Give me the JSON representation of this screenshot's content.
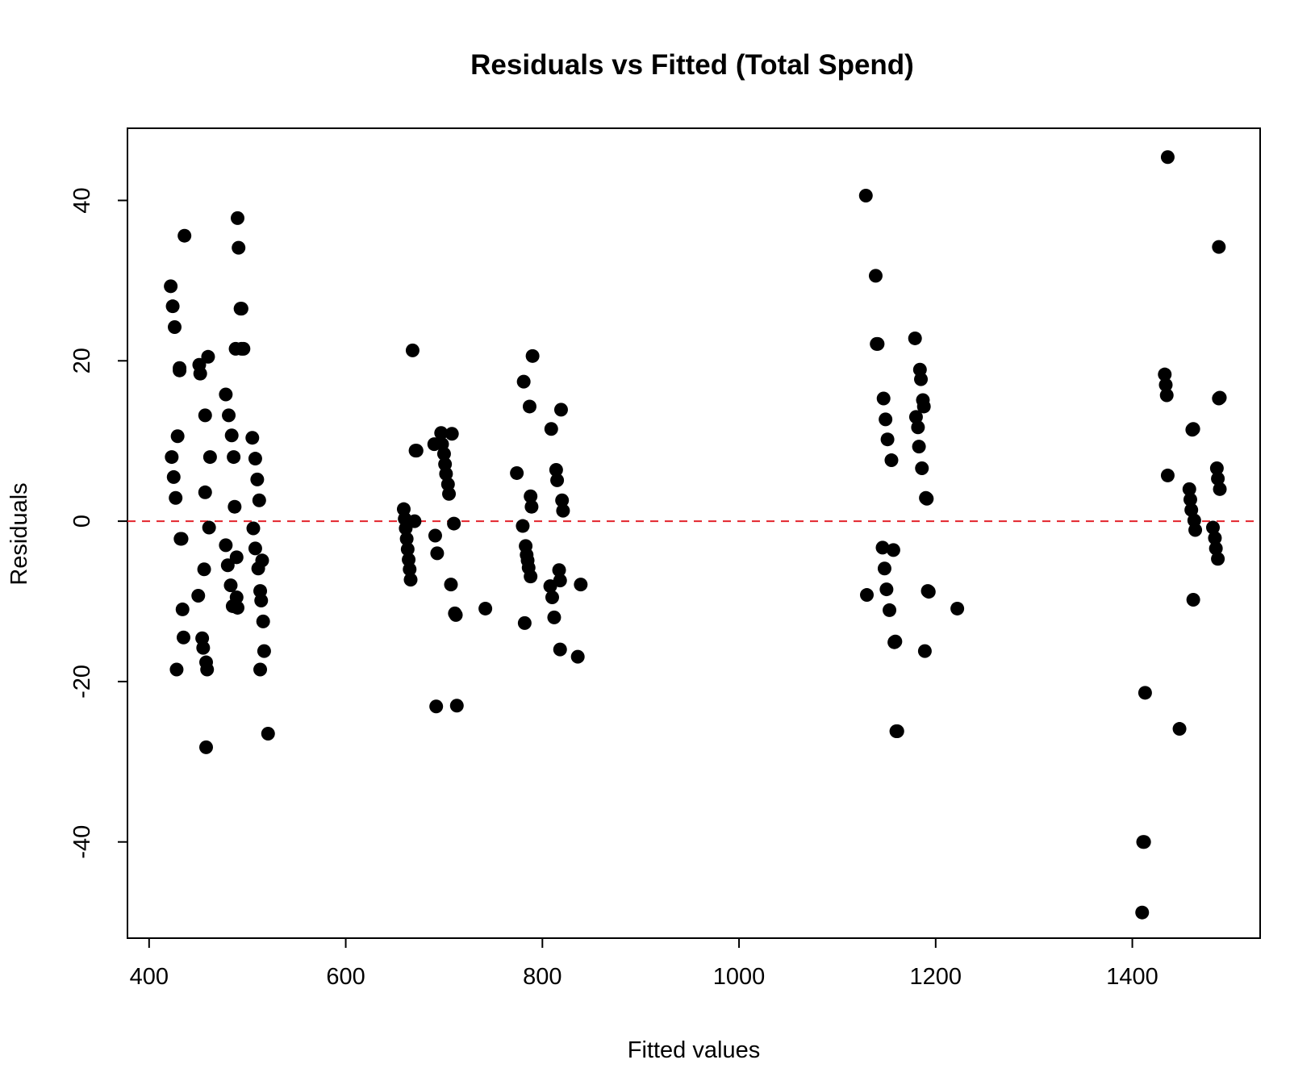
{
  "chart_data": {
    "type": "scatter",
    "title": "Residuals vs Fitted (Total Spend)",
    "xlabel": "Fitted values",
    "ylabel": "Residuals",
    "xlim": [
      378,
      1530
    ],
    "ylim": [
      -52,
      49
    ],
    "xticks": [
      400,
      600,
      800,
      1000,
      1200,
      1400
    ],
    "yticks": [
      -40,
      -20,
      0,
      20,
      40
    ],
    "xtick_labels": [
      "400",
      "600",
      "800",
      "1000",
      "1200",
      "1400"
    ],
    "ytick_labels": [
      "-40",
      "-20",
      "0",
      "20",
      "40"
    ],
    "grid": false,
    "reference_line": {
      "y": 0,
      "style": "dashed",
      "color": "#e3232c"
    },
    "point_color": "#000000",
    "points": [
      [
        422,
        29.3
      ],
      [
        423,
        8.0
      ],
      [
        424,
        26.8
      ],
      [
        425,
        5.5
      ],
      [
        426,
        24.2
      ],
      [
        427,
        2.9
      ],
      [
        428,
        -18.5
      ],
      [
        429,
        10.6
      ],
      [
        431,
        19.1
      ],
      [
        431,
        18.8
      ],
      [
        432,
        -2.2
      ],
      [
        433,
        -2.2
      ],
      [
        434,
        -11.0
      ],
      [
        435,
        -14.5
      ],
      [
        436,
        35.6
      ],
      [
        450,
        -9.3
      ],
      [
        451,
        19.5
      ],
      [
        452,
        18.4
      ],
      [
        454,
        -14.6
      ],
      [
        455,
        -15.8
      ],
      [
        456,
        -6.0
      ],
      [
        457,
        3.6
      ],
      [
        457,
        13.2
      ],
      [
        458,
        -28.2
      ],
      [
        458,
        -17.6
      ],
      [
        459,
        -18.5
      ],
      [
        460,
        20.5
      ],
      [
        461,
        -0.8
      ],
      [
        462,
        8.0
      ],
      [
        478,
        15.8
      ],
      [
        478,
        -3.0
      ],
      [
        480,
        -5.5
      ],
      [
        481,
        13.2
      ],
      [
        483,
        -8.0
      ],
      [
        484,
        10.7
      ],
      [
        485,
        -10.6
      ],
      [
        486,
        8.0
      ],
      [
        487,
        1.8
      ],
      [
        488,
        21.5
      ],
      [
        489,
        -4.5
      ],
      [
        489,
        -9.5
      ],
      [
        490,
        -10.8
      ],
      [
        490,
        37.8
      ],
      [
        491,
        34.1
      ],
      [
        493,
        26.5
      ],
      [
        494,
        26.5
      ],
      [
        494,
        21.5
      ],
      [
        496,
        21.5
      ],
      [
        505,
        10.4
      ],
      [
        506,
        -0.9
      ],
      [
        508,
        7.8
      ],
      [
        508,
        -3.4
      ],
      [
        510,
        5.2
      ],
      [
        511,
        -5.9
      ],
      [
        512,
        2.6
      ],
      [
        513,
        -18.5
      ],
      [
        513,
        -8.7
      ],
      [
        514,
        -9.9
      ],
      [
        515,
        -4.9
      ],
      [
        516,
        -12.5
      ],
      [
        517,
        -16.2
      ],
      [
        521,
        -26.5
      ],
      [
        659,
        1.5
      ],
      [
        660,
        0.3
      ],
      [
        661,
        -0.9
      ],
      [
        662,
        -2.2
      ],
      [
        663,
        -3.5
      ],
      [
        664,
        -4.8
      ],
      [
        665,
        -6.0
      ],
      [
        666,
        -7.3
      ],
      [
        668,
        21.3
      ],
      [
        670,
        0.0
      ],
      [
        671,
        8.8
      ],
      [
        672,
        8.8
      ],
      [
        690,
        9.6
      ],
      [
        691,
        -1.8
      ],
      [
        692,
        -23.1
      ],
      [
        693,
        -4.0
      ],
      [
        697,
        11.0
      ],
      [
        698,
        9.6
      ],
      [
        700,
        8.4
      ],
      [
        701,
        7.1
      ],
      [
        702,
        5.9
      ],
      [
        704,
        4.6
      ],
      [
        705,
        3.4
      ],
      [
        707,
        -7.9
      ],
      [
        708,
        10.9
      ],
      [
        710,
        -0.3
      ],
      [
        711,
        -11.5
      ],
      [
        712,
        -11.7
      ],
      [
        713,
        -23.0
      ],
      [
        742,
        -10.9
      ],
      [
        774,
        6.0
      ],
      [
        780,
        -0.6
      ],
      [
        781,
        17.4
      ],
      [
        782,
        -12.7
      ],
      [
        783,
        -3.1
      ],
      [
        784,
        -4.2
      ],
      [
        785,
        -4.9
      ],
      [
        786,
        -5.8
      ],
      [
        787,
        14.3
      ],
      [
        788,
        -6.9
      ],
      [
        788,
        3.1
      ],
      [
        789,
        1.8
      ],
      [
        790,
        20.6
      ],
      [
        808,
        -8.1
      ],
      [
        809,
        11.5
      ],
      [
        810,
        -9.5
      ],
      [
        812,
        -12.0
      ],
      [
        814,
        6.4
      ],
      [
        815,
        5.1
      ],
      [
        817,
        -6.1
      ],
      [
        818,
        -7.4
      ],
      [
        818,
        -16.0
      ],
      [
        819,
        13.9
      ],
      [
        820,
        2.6
      ],
      [
        821,
        1.3
      ],
      [
        836,
        -16.9
      ],
      [
        839,
        -7.9
      ],
      [
        1129,
        40.6
      ],
      [
        1130,
        -9.2
      ],
      [
        1139,
        30.6
      ],
      [
        1140,
        22.1
      ],
      [
        1141,
        22.1
      ],
      [
        1146,
        -3.3
      ],
      [
        1147,
        15.3
      ],
      [
        1148,
        -5.9
      ],
      [
        1149,
        12.7
      ],
      [
        1150,
        -8.5
      ],
      [
        1151,
        10.2
      ],
      [
        1153,
        -11.1
      ],
      [
        1155,
        7.6
      ],
      [
        1157,
        -3.6
      ],
      [
        1158,
        -15.1
      ],
      [
        1159,
        -15.0
      ],
      [
        1160,
        -26.2
      ],
      [
        1161,
        -26.2
      ],
      [
        1179,
        22.8
      ],
      [
        1180,
        13.0
      ],
      [
        1182,
        11.7
      ],
      [
        1183,
        9.3
      ],
      [
        1184,
        18.9
      ],
      [
        1185,
        17.7
      ],
      [
        1186,
        6.6
      ],
      [
        1187,
        15.1
      ],
      [
        1188,
        14.3
      ],
      [
        1189,
        -16.2
      ],
      [
        1190,
        2.9
      ],
      [
        1191,
        2.8
      ],
      [
        1192,
        -8.7
      ],
      [
        1193,
        -8.8
      ],
      [
        1222,
        -10.9
      ],
      [
        1410,
        -48.8
      ],
      [
        1411,
        -40.0
      ],
      [
        1412,
        -40.0
      ],
      [
        1413,
        -21.4
      ],
      [
        1433,
        18.3
      ],
      [
        1434,
        17.0
      ],
      [
        1435,
        15.7
      ],
      [
        1436,
        45.4
      ],
      [
        1436,
        5.7
      ],
      [
        1448,
        -25.9
      ],
      [
        1458,
        4.0
      ],
      [
        1459,
        2.7
      ],
      [
        1460,
        1.4
      ],
      [
        1461,
        11.4
      ],
      [
        1462,
        11.5
      ],
      [
        1462,
        -9.8
      ],
      [
        1463,
        0.1
      ],
      [
        1464,
        -1.1
      ],
      [
        1482,
        -0.8
      ],
      [
        1484,
        -2.1
      ],
      [
        1485,
        -3.4
      ],
      [
        1486,
        6.6
      ],
      [
        1487,
        -4.7
      ],
      [
        1487,
        5.3
      ],
      [
        1488,
        15.3
      ],
      [
        1488,
        34.2
      ],
      [
        1489,
        15.4
      ],
      [
        1489,
        4.0
      ]
    ]
  }
}
